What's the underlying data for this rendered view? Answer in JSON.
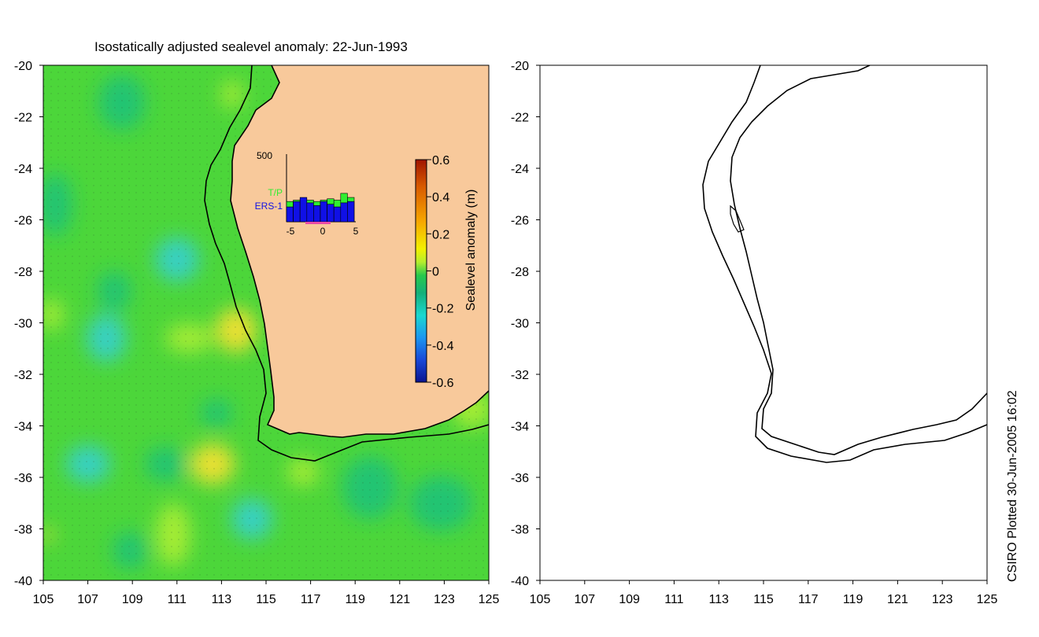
{
  "title": "Isostatically adjusted sealevel anomaly: 22-Jun-1993",
  "axes": {
    "x_ticks": [
      105,
      107,
      109,
      111,
      113,
      115,
      117,
      119,
      121,
      123,
      125
    ],
    "y_ticks": [
      -20,
      -22,
      -24,
      -26,
      -28,
      -30,
      -32,
      -34,
      -36,
      -38,
      -40
    ],
    "xlim": [
      105,
      125
    ],
    "ylim": [
      -40,
      -20
    ]
  },
  "colorbar": {
    "label": "Sealevel anomaly (m)",
    "ticks": [
      "0.6",
      "0.4",
      "0.2",
      "0",
      "-0.2",
      "-0.4",
      "-0.6"
    ],
    "colors": [
      "#a01400",
      "#d85a00",
      "#f7a800",
      "#f3f000",
      "#b5ee2e",
      "#27c94c",
      "#14b07a",
      "#1ad8d0",
      "#1a96f0",
      "#1848d8",
      "#0a1490"
    ]
  },
  "inset": {
    "y_max_label": "500",
    "x_tick_labels": [
      "-5",
      "0",
      "5"
    ],
    "legend": [
      {
        "label": "T/P",
        "color": "#30ee30"
      },
      {
        "label": "ERS-1",
        "color": "#1010e6"
      }
    ],
    "bars": [
      {
        "tp": 150,
        "ers": 110
      },
      {
        "tp": 160,
        "ers": 150
      },
      {
        "tp": 170,
        "ers": 180
      },
      {
        "tp": 160,
        "ers": 140
      },
      {
        "tp": 150,
        "ers": 120
      },
      {
        "tp": 160,
        "ers": 150
      },
      {
        "tp": 170,
        "ers": 130
      },
      {
        "tp": 160,
        "ers": 110
      },
      {
        "tp": 210,
        "ers": 140
      },
      {
        "tp": 180,
        "ers": 150
      }
    ]
  },
  "credit": "CSIRO Plotted 30-Jun-2005 16:02",
  "colors": {
    "land": "#f8c99b",
    "sea_base": "#4cd63a",
    "sea_light": "#a4ec34",
    "sea_teal": "#22c472",
    "sea_cyan": "#38d0c0"
  },
  "chart_data": [
    {
      "type": "heatmap",
      "title": "Isostatically adjusted sealevel anomaly: 22-Jun-1993",
      "xlabel": "",
      "ylabel": "",
      "xlim": [
        105,
        125
      ],
      "ylim": [
        -40,
        -20
      ],
      "colorbar_range": [
        -0.6,
        0.6
      ]
    },
    {
      "type": "bar",
      "categories": [
        -5,
        -4,
        -3,
        -2,
        -1,
        0,
        1,
        2,
        3,
        4
      ],
      "series": [
        {
          "name": "T/P",
          "values": [
            150,
            160,
            170,
            160,
            150,
            160,
            170,
            160,
            210,
            180
          ]
        },
        {
          "name": "ERS-1",
          "values": [
            110,
            150,
            180,
            140,
            120,
            150,
            130,
            110,
            140,
            150
          ]
        }
      ],
      "ylim": [
        0,
        500
      ]
    }
  ]
}
